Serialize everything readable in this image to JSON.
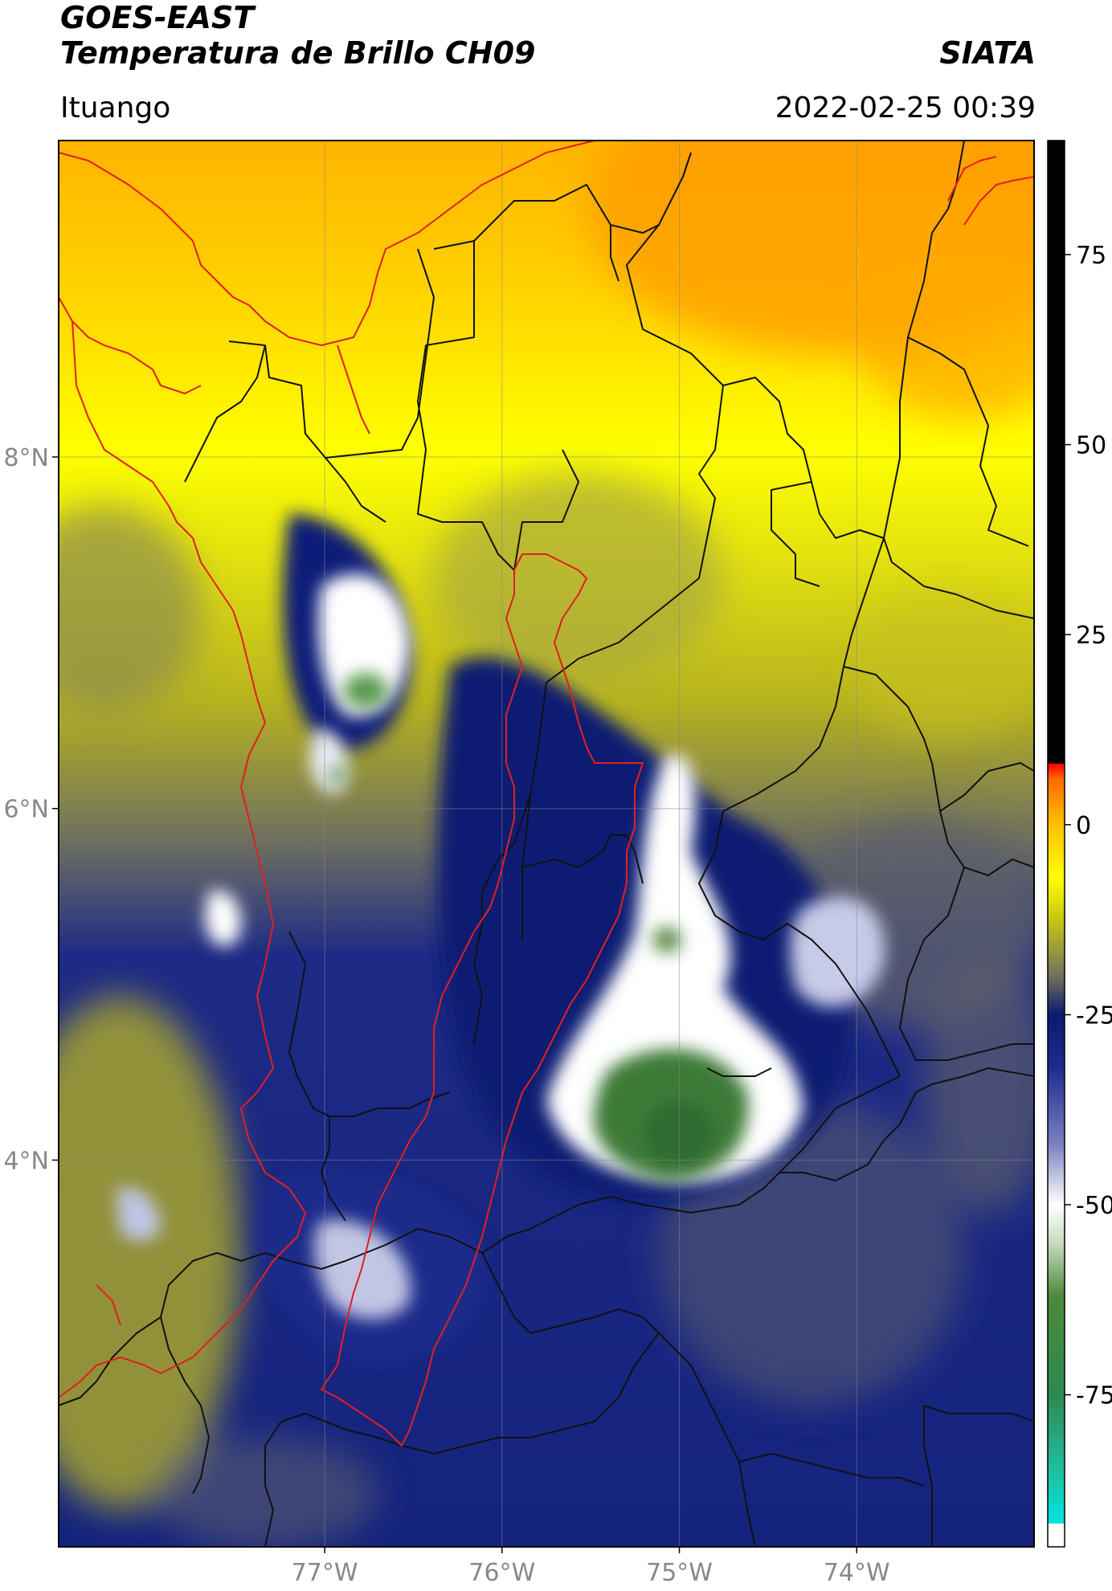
{
  "header": {
    "satellite": "GOES-EAST",
    "product": "Temperatura de Brillo CH09",
    "organization": "SIATA",
    "region": "Ituango",
    "datetime": "2022-02-25 00:39"
  },
  "map": {
    "lon_range": [
      -78.5,
      -73.0
    ],
    "lat_range": [
      1.8,
      9.8
    ],
    "lon_ticks": [
      {
        "value": -77,
        "label": "77°W"
      },
      {
        "value": -76,
        "label": "76°W"
      },
      {
        "value": -75,
        "label": "75°W"
      },
      {
        "value": -74,
        "label": "74°W"
      }
    ],
    "lat_ticks": [
      {
        "value": 8,
        "label": "8°N"
      },
      {
        "value": 6,
        "label": "6°N"
      },
      {
        "value": 4,
        "label": "4°N"
      }
    ],
    "gridlines": true,
    "boundary_colors": {
      "highlighted": "#e0201e",
      "departments": "#111111"
    }
  },
  "colorbar": {
    "range": [
      -95,
      90
    ],
    "ticks": [
      {
        "value": 75,
        "label": "75"
      },
      {
        "value": 50,
        "label": "50"
      },
      {
        "value": 25,
        "label": "25"
      },
      {
        "value": 0,
        "label": "0"
      },
      {
        "value": -25,
        "label": "-25"
      },
      {
        "value": -50,
        "label": "-50"
      },
      {
        "value": -75,
        "label": "-75"
      }
    ],
    "stops": [
      {
        "value": -95,
        "color": "#ffffff"
      },
      {
        "value": -92,
        "color": "#ffffff"
      },
      {
        "value": -91.9,
        "color": "#00e5e0"
      },
      {
        "value": -85,
        "color": "#1fbfa0"
      },
      {
        "value": -75,
        "color": "#2d8a4f"
      },
      {
        "value": -62,
        "color": "#4c8a3a"
      },
      {
        "value": -55,
        "color": "#c7dcc0"
      },
      {
        "value": -50,
        "color": "#ffffff"
      },
      {
        "value": -42,
        "color": "#7a80c0"
      },
      {
        "value": -32,
        "color": "#1d2c8f"
      },
      {
        "value": -25,
        "color": "#0a1a6e"
      },
      {
        "value": -20,
        "color": "#707060"
      },
      {
        "value": -12,
        "color": "#cccc10"
      },
      {
        "value": -7,
        "color": "#ffff00"
      },
      {
        "value": 0,
        "color": "#ffc000"
      },
      {
        "value": 6,
        "color": "#ff6a00"
      },
      {
        "value": 8,
        "color": "#ff0000"
      },
      {
        "value": 8.1,
        "color": "#000000"
      },
      {
        "value": 90,
        "color": "#000000"
      }
    ]
  }
}
